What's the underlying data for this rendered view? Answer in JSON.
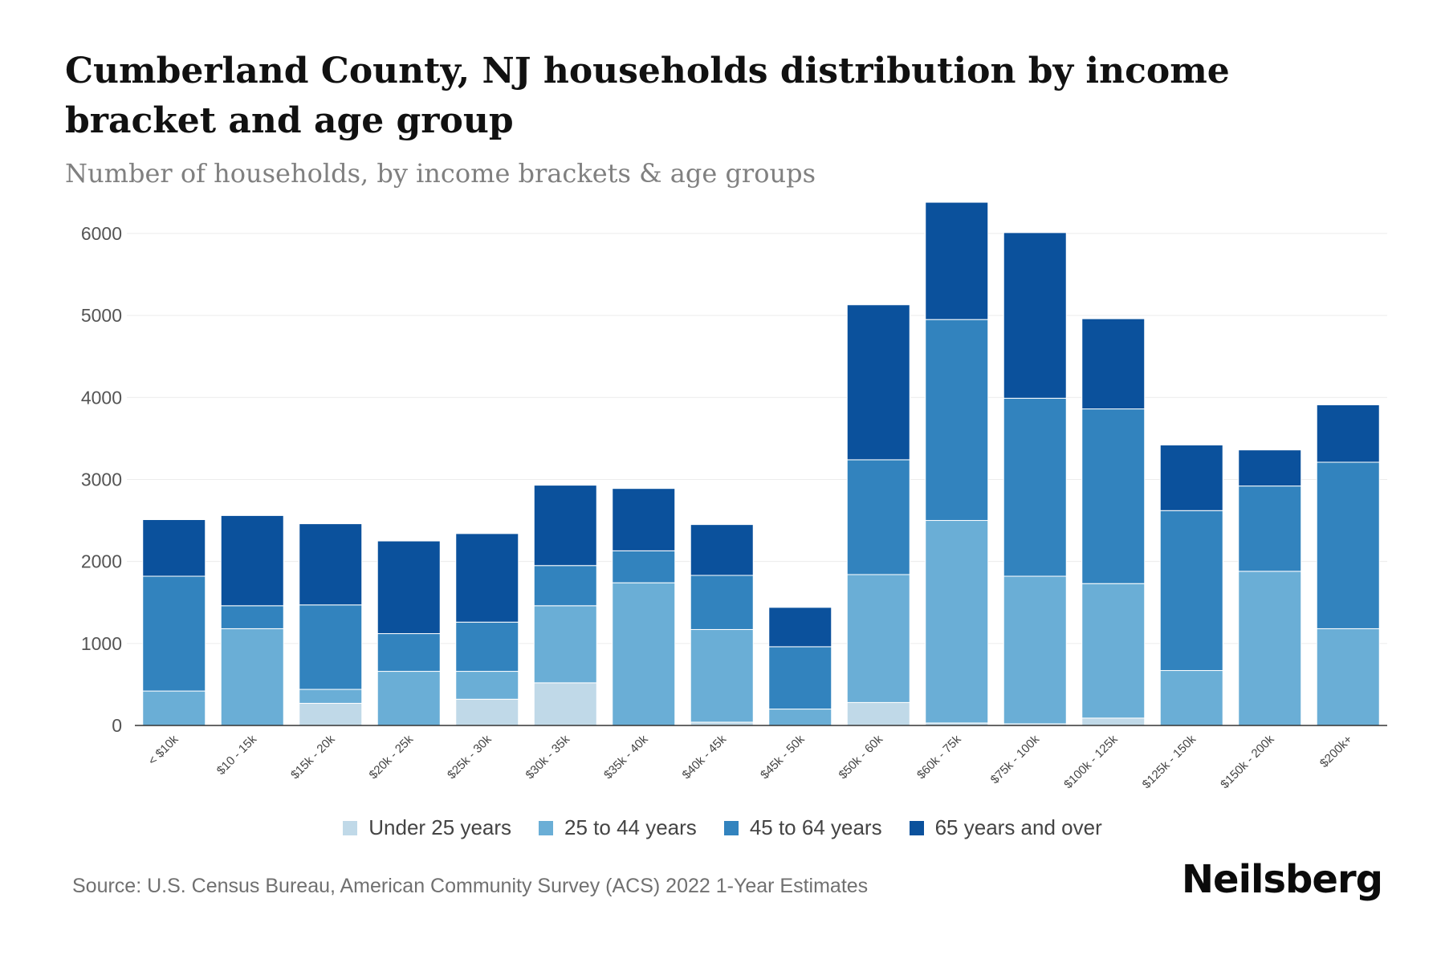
{
  "chart_data": {
    "type": "bar",
    "stacked": true,
    "title": "Cumberland County, NJ households distribution by income bracket and age group",
    "subtitle": "Number of households, by income brackets & age groups",
    "categories": [
      "< $10k",
      "$10 - 15k",
      "$15k - 20k",
      "$20k - 25k",
      "$25k - 30k",
      "$30k - 35k",
      "$35k - 40k",
      "$40k - 45k",
      "$45k - 50k",
      "$50k - 60k",
      "$60k - 75k",
      "$75k - 100k",
      "$100k - 125k",
      "$125k - 150k",
      "$150k - 200k",
      "$200k+"
    ],
    "series": [
      {
        "name": "Under 25 years",
        "color": "#c0d9e8",
        "values": [
          0,
          0,
          270,
          0,
          320,
          520,
          0,
          40,
          0,
          280,
          30,
          20,
          90,
          0,
          0,
          0
        ]
      },
      {
        "name": "25 to 44 years",
        "color": "#6aaed6",
        "values": [
          420,
          1180,
          170,
          660,
          340,
          940,
          1740,
          1130,
          200,
          1560,
          2470,
          1800,
          1640,
          670,
          1880,
          1180
        ]
      },
      {
        "name": "45 to 64 years",
        "color": "#3283be",
        "values": [
          1400,
          280,
          1030,
          460,
          600,
          490,
          390,
          660,
          760,
          1400,
          2450,
          2170,
          2130,
          1950,
          1040,
          2030
        ]
      },
      {
        "name": "65 years and over",
        "color": "#0b519c",
        "values": [
          690,
          1100,
          990,
          1130,
          1080,
          980,
          760,
          620,
          480,
          1890,
          1430,
          2020,
          1100,
          800,
          440,
          700
        ]
      }
    ],
    "xlabel": "",
    "ylabel": "",
    "ylim": [
      0,
      6400
    ],
    "yticks": [
      0,
      1000,
      2000,
      3000,
      4000,
      5000,
      6000
    ],
    "grid": true,
    "legend": "bottom-center"
  },
  "source": "Source: U.S. Census Bureau, American Community Survey (ACS) 2022 1-Year Estimates",
  "brand": "Neilsberg"
}
